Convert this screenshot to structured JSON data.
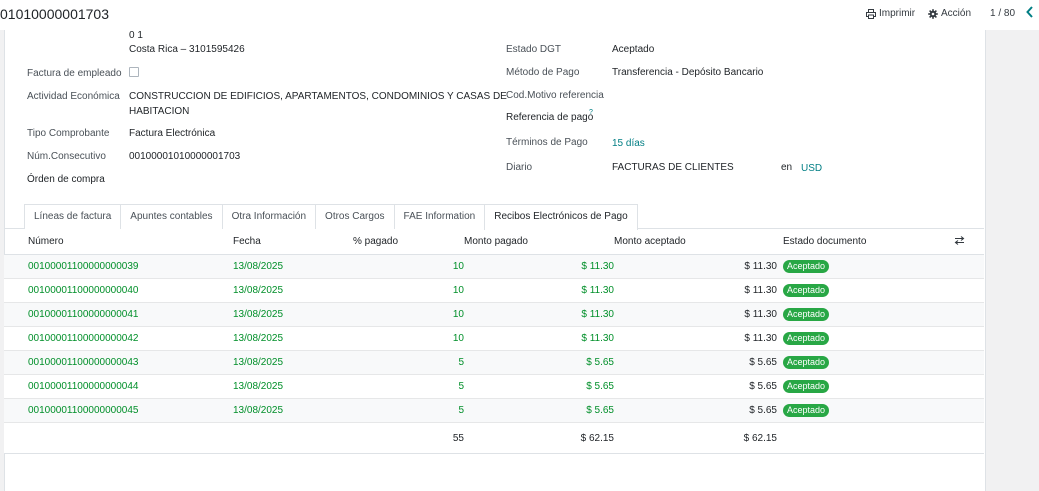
{
  "header": {
    "record_title": "01010000001703",
    "print_label": "Imprimir",
    "action_label": "Acción",
    "pager": "1 / 80"
  },
  "form": {
    "address_line1": "0 1",
    "address_line2": "Costa Rica – 3101595426",
    "employee_invoice_label": "Factura de empleado",
    "economic_activity_label": "Actividad Económica",
    "economic_activity_value_line1": "CONSTRUCCION DE EDIFICIOS, APARTAMENTOS, CONDOMINIOS Y CASAS DE",
    "economic_activity_value_line2": "HABITACION",
    "voucher_type_label": "Tipo Comprobante",
    "voucher_type_value": "Factura Electrónica",
    "consecutive_label": "Núm.Consecutivo",
    "consecutive_value": "00100001010000001703",
    "purchase_order_label": "Órden de compra",
    "dgt_state_label": "Estado DGT",
    "dgt_state_value": "Aceptado",
    "payment_method_label": "Método de Pago",
    "payment_method_value": "Transferencia - Depósito Bancario",
    "reference_reason_label": "Cod.Motivo referencia",
    "payment_reference_label": "Referencia de pago",
    "payment_reference_help": "?",
    "payment_terms_label": "Términos de Pago",
    "payment_terms_value": "15 días",
    "journal_label": "Diario",
    "journal_value": "FACTURAS DE CLIENTES",
    "currency_prefix": "en",
    "currency_value": "USD"
  },
  "tabs": [
    {
      "label": "Líneas de factura"
    },
    {
      "label": "Apuntes contables"
    },
    {
      "label": "Otra Información"
    },
    {
      "label": "Otros Cargos"
    },
    {
      "label": "FAE Information"
    },
    {
      "label": "Recibos Electrónicos de Pago"
    }
  ],
  "table": {
    "columns": [
      "Número",
      "Fecha",
      "% pagado",
      "Monto pagado",
      "Monto aceptado",
      "Estado documento"
    ],
    "rows": [
      {
        "numero": "00100001100000000039",
        "fecha": "13/08/2025",
        "pagado": "10",
        "monto_pagado": "$ 11.30",
        "monto_aceptado": "$ 11.30",
        "estado": "Aceptado"
      },
      {
        "numero": "00100001100000000040",
        "fecha": "13/08/2025",
        "pagado": "10",
        "monto_pagado": "$ 11.30",
        "monto_aceptado": "$ 11.30",
        "estado": "Aceptado"
      },
      {
        "numero": "00100001100000000041",
        "fecha": "13/08/2025",
        "pagado": "10",
        "monto_pagado": "$ 11.30",
        "monto_aceptado": "$ 11.30",
        "estado": "Aceptado"
      },
      {
        "numero": "00100001100000000042",
        "fecha": "13/08/2025",
        "pagado": "10",
        "monto_pagado": "$ 11.30",
        "monto_aceptado": "$ 11.30",
        "estado": "Aceptado"
      },
      {
        "numero": "00100001100000000043",
        "fecha": "13/08/2025",
        "pagado": "5",
        "monto_pagado": "$ 5.65",
        "monto_aceptado": "$ 5.65",
        "estado": "Aceptado"
      },
      {
        "numero": "00100001100000000044",
        "fecha": "13/08/2025",
        "pagado": "5",
        "monto_pagado": "$ 5.65",
        "monto_aceptado": "$ 5.65",
        "estado": "Aceptado"
      },
      {
        "numero": "00100001100000000045",
        "fecha": "13/08/2025",
        "pagado": "5",
        "monto_pagado": "$ 5.65",
        "monto_aceptado": "$ 5.65",
        "estado": "Aceptado"
      }
    ],
    "totals": {
      "pagado": "55",
      "monto_pagado": "$ 62.15",
      "monto_aceptado": "$ 62.15"
    }
  },
  "colors": {
    "link": "#017e84",
    "row_text": "#008f29",
    "badge": "#28a745"
  },
  "icons": [
    "printer-icon",
    "gear-icon",
    "chevron-left-icon",
    "optional-columns-icon"
  ]
}
